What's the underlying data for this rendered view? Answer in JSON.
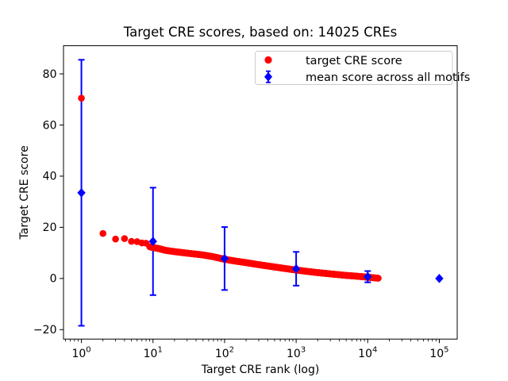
{
  "chart_data": {
    "type": "scatter",
    "title": "Target CRE scores, based on: 14025 CREs",
    "xlabel": "Target CRE rank (log)",
    "ylabel": "Target CRE score",
    "x_scale": "log",
    "xlim": [
      0.562,
      177828
    ],
    "ylim": [
      -23.7,
      91
    ],
    "x_tick_exponents": [
      0,
      1,
      2,
      3,
      4,
      5
    ],
    "x_minor_tick_subs": [
      2,
      3,
      4,
      5,
      6,
      7,
      8,
      9
    ],
    "y_ticks": [
      -20,
      0,
      20,
      40,
      60,
      80
    ],
    "grid": false,
    "legend_position": "upper right",
    "total_cres": 14025,
    "colors": {
      "target_series": "#ff0000",
      "mean_series": "#0000ff"
    },
    "series": [
      {
        "name": "target CRE score",
        "marker": "circle",
        "color": "#ff0000",
        "head_points": [
          [
            1,
            70.5
          ],
          [
            2,
            17.6
          ],
          [
            3,
            15.4
          ],
          [
            4,
            15.6
          ],
          [
            5,
            14.5
          ],
          [
            6,
            14.4
          ],
          [
            7,
            13.9
          ],
          [
            8,
            13.8
          ]
        ],
        "band_points_total": 14017,
        "band_rank_range": [
          9,
          14025
        ],
        "band_anchors": [
          [
            9,
            12.4
          ],
          [
            10,
            12.1
          ],
          [
            12,
            11.7
          ],
          [
            15,
            11.0
          ],
          [
            20,
            10.5
          ],
          [
            30,
            9.9
          ],
          [
            50,
            9.2
          ],
          [
            70,
            8.5
          ],
          [
            100,
            7.5
          ],
          [
            150,
            6.7
          ],
          [
            200,
            6.2
          ],
          [
            300,
            5.4
          ],
          [
            500,
            4.5
          ],
          [
            700,
            3.9
          ],
          [
            1000,
            3.3
          ],
          [
            1500,
            2.7
          ],
          [
            2000,
            2.3
          ],
          [
            3000,
            1.8
          ],
          [
            5000,
            1.2
          ],
          [
            7000,
            0.9
          ],
          [
            10000,
            0.5
          ],
          [
            12000,
            0.3
          ],
          [
            14025,
            0.1
          ]
        ]
      },
      {
        "name": "mean score across all motifs",
        "marker": "diamond",
        "color": "#0000ff",
        "points": [
          {
            "rank": 1,
            "mean": 33.5,
            "err": 52.0
          },
          {
            "rank": 10,
            "mean": 14.5,
            "err": 21.0
          },
          {
            "rank": 100,
            "mean": 7.8,
            "err": 12.3
          },
          {
            "rank": 1000,
            "mean": 3.8,
            "err": 6.6
          },
          {
            "rank": 10000,
            "mean": 0.7,
            "err": 2.2
          },
          {
            "rank": 100000,
            "mean": 0.0,
            "err": 0.0
          }
        ]
      }
    ]
  }
}
